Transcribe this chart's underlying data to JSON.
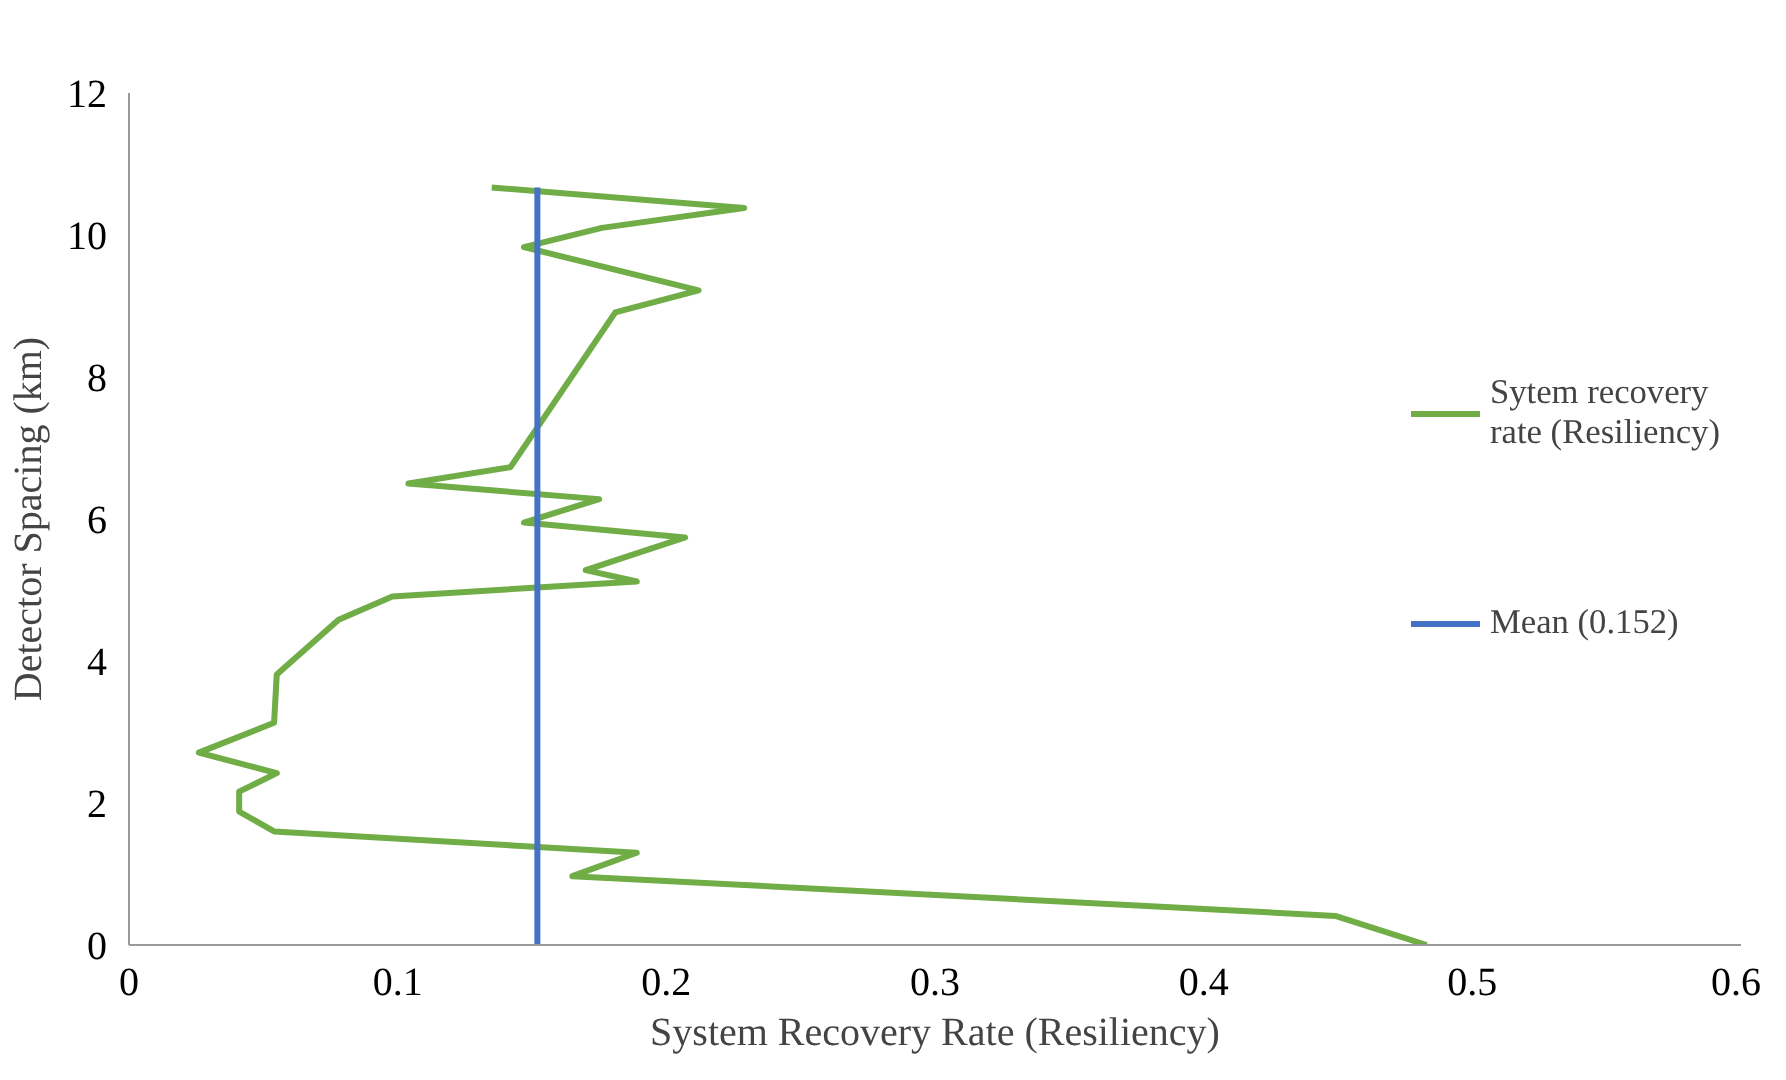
{
  "chart_data": {
    "type": "line",
    "xlabel": "System Recovery Rate (Resiliency)",
    "ylabel": "Detector Spacing (km)",
    "xlim": [
      0,
      0.6
    ],
    "xticks": [
      0,
      0.1,
      0.2,
      0.3,
      0.4,
      0.5,
      0.6
    ],
    "ylim": [
      0,
      12
    ],
    "yticks": [
      0,
      2,
      4,
      6,
      8,
      10,
      12
    ],
    "grid": false,
    "legend": "right",
    "marker": "none",
    "line_style": "solid",
    "series": [
      {
        "name": "Sytem recovery rate (Resiliency)",
        "color": "#70ad47",
        "x": [
          0.483,
          0.449,
          0.165,
          0.189,
          0.054,
          0.041,
          0.041,
          0.055,
          0.026,
          0.054,
          0.055,
          0.078,
          0.098,
          0.189,
          0.17,
          0.207,
          0.147,
          0.175,
          0.104,
          0.142,
          0.181,
          0.212,
          0.147,
          0.176,
          0.229,
          0.135
        ],
        "values": [
          0,
          0.41,
          0.97,
          1.3,
          1.6,
          1.88,
          2.16,
          2.42,
          2.71,
          3.13,
          3.81,
          4.58,
          4.91,
          5.12,
          5.28,
          5.74,
          5.95,
          6.28,
          6.5,
          6.73,
          8.91,
          9.22,
          9.83,
          10.1,
          10.38,
          10.67
        ]
      },
      {
        "name": "Mean (0.152)",
        "color": "#4472c4",
        "x": [
          0.152,
          0.152
        ],
        "values": [
          0,
          10.67
        ]
      }
    ]
  }
}
